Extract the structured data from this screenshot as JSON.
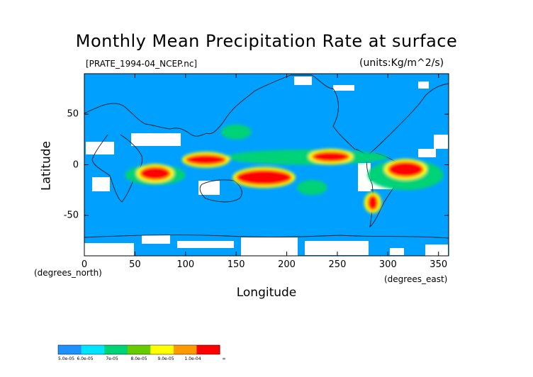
{
  "title": "Monthly Mean Precipitation Rate at surface",
  "file_label": "[PRATE_1994-04_NCEP.nc]",
  "units_label": "(units:Kg/m^2/s)",
  "axes": {
    "xlabel": "Longitude",
    "ylabel": "Latitude",
    "x_unit": "(degrees_east)",
    "y_unit": "(degrees_north)",
    "x_ticks": [
      "0",
      "50",
      "100",
      "150",
      "200",
      "250",
      "300",
      "350"
    ],
    "y_ticks": [
      "50",
      "0",
      "-50"
    ]
  },
  "colorbar": {
    "labels": [
      "5.0e-05",
      "6.0e-05",
      "7e-05",
      "8.0e-05",
      "9.0e-05",
      "1.0e-04",
      "∞"
    ],
    "colors": [
      "#1e90ff",
      "#00e5ff",
      "#00d277",
      "#66cc00",
      "#ffff00",
      "#ff9900",
      "#ff0000"
    ]
  },
  "chart_data": {
    "type": "heatmap",
    "title": "Monthly Mean Precipitation Rate at surface",
    "xlabel": "Longitude",
    "ylabel": "Latitude",
    "xlim": [
      0,
      360
    ],
    "ylim": [
      -90,
      90
    ],
    "background_color": "#00a0ff",
    "missing_color": "#ffffff",
    "regions": [
      {
        "level": "high",
        "lon": [
          150,
          205
        ],
        "lat": [
          -20,
          -5
        ]
      },
      {
        "level": "high",
        "lon": [
          225,
          262
        ],
        "lat": [
          3,
          13
        ]
      },
      {
        "level": "high",
        "lon": [
          300,
          335
        ],
        "lat": [
          -12,
          3
        ]
      },
      {
        "level": "high",
        "lon": [
          100,
          140
        ],
        "lat": [
          0,
          10
        ]
      },
      {
        "level": "high",
        "lon": [
          55,
          85
        ],
        "lat": [
          -15,
          -2
        ]
      },
      {
        "level": "high",
        "lon": [
          280,
          290
        ],
        "lat": [
          -45,
          -30
        ]
      },
      {
        "level": "medium",
        "lon": [
          140,
          300
        ],
        "lat": [
          0,
          15
        ]
      },
      {
        "level": "medium",
        "lon": [
          40,
          100
        ],
        "lat": [
          -20,
          0
        ]
      },
      {
        "level": "medium",
        "lon": [
          135,
          165
        ],
        "lat": [
          25,
          40
        ]
      },
      {
        "level": "medium",
        "lon": [
          280,
          355
        ],
        "lat": [
          -25,
          5
        ]
      },
      {
        "level": "medium",
        "lon": [
          210,
          240
        ],
        "lat": [
          -30,
          -15
        ]
      }
    ]
  }
}
